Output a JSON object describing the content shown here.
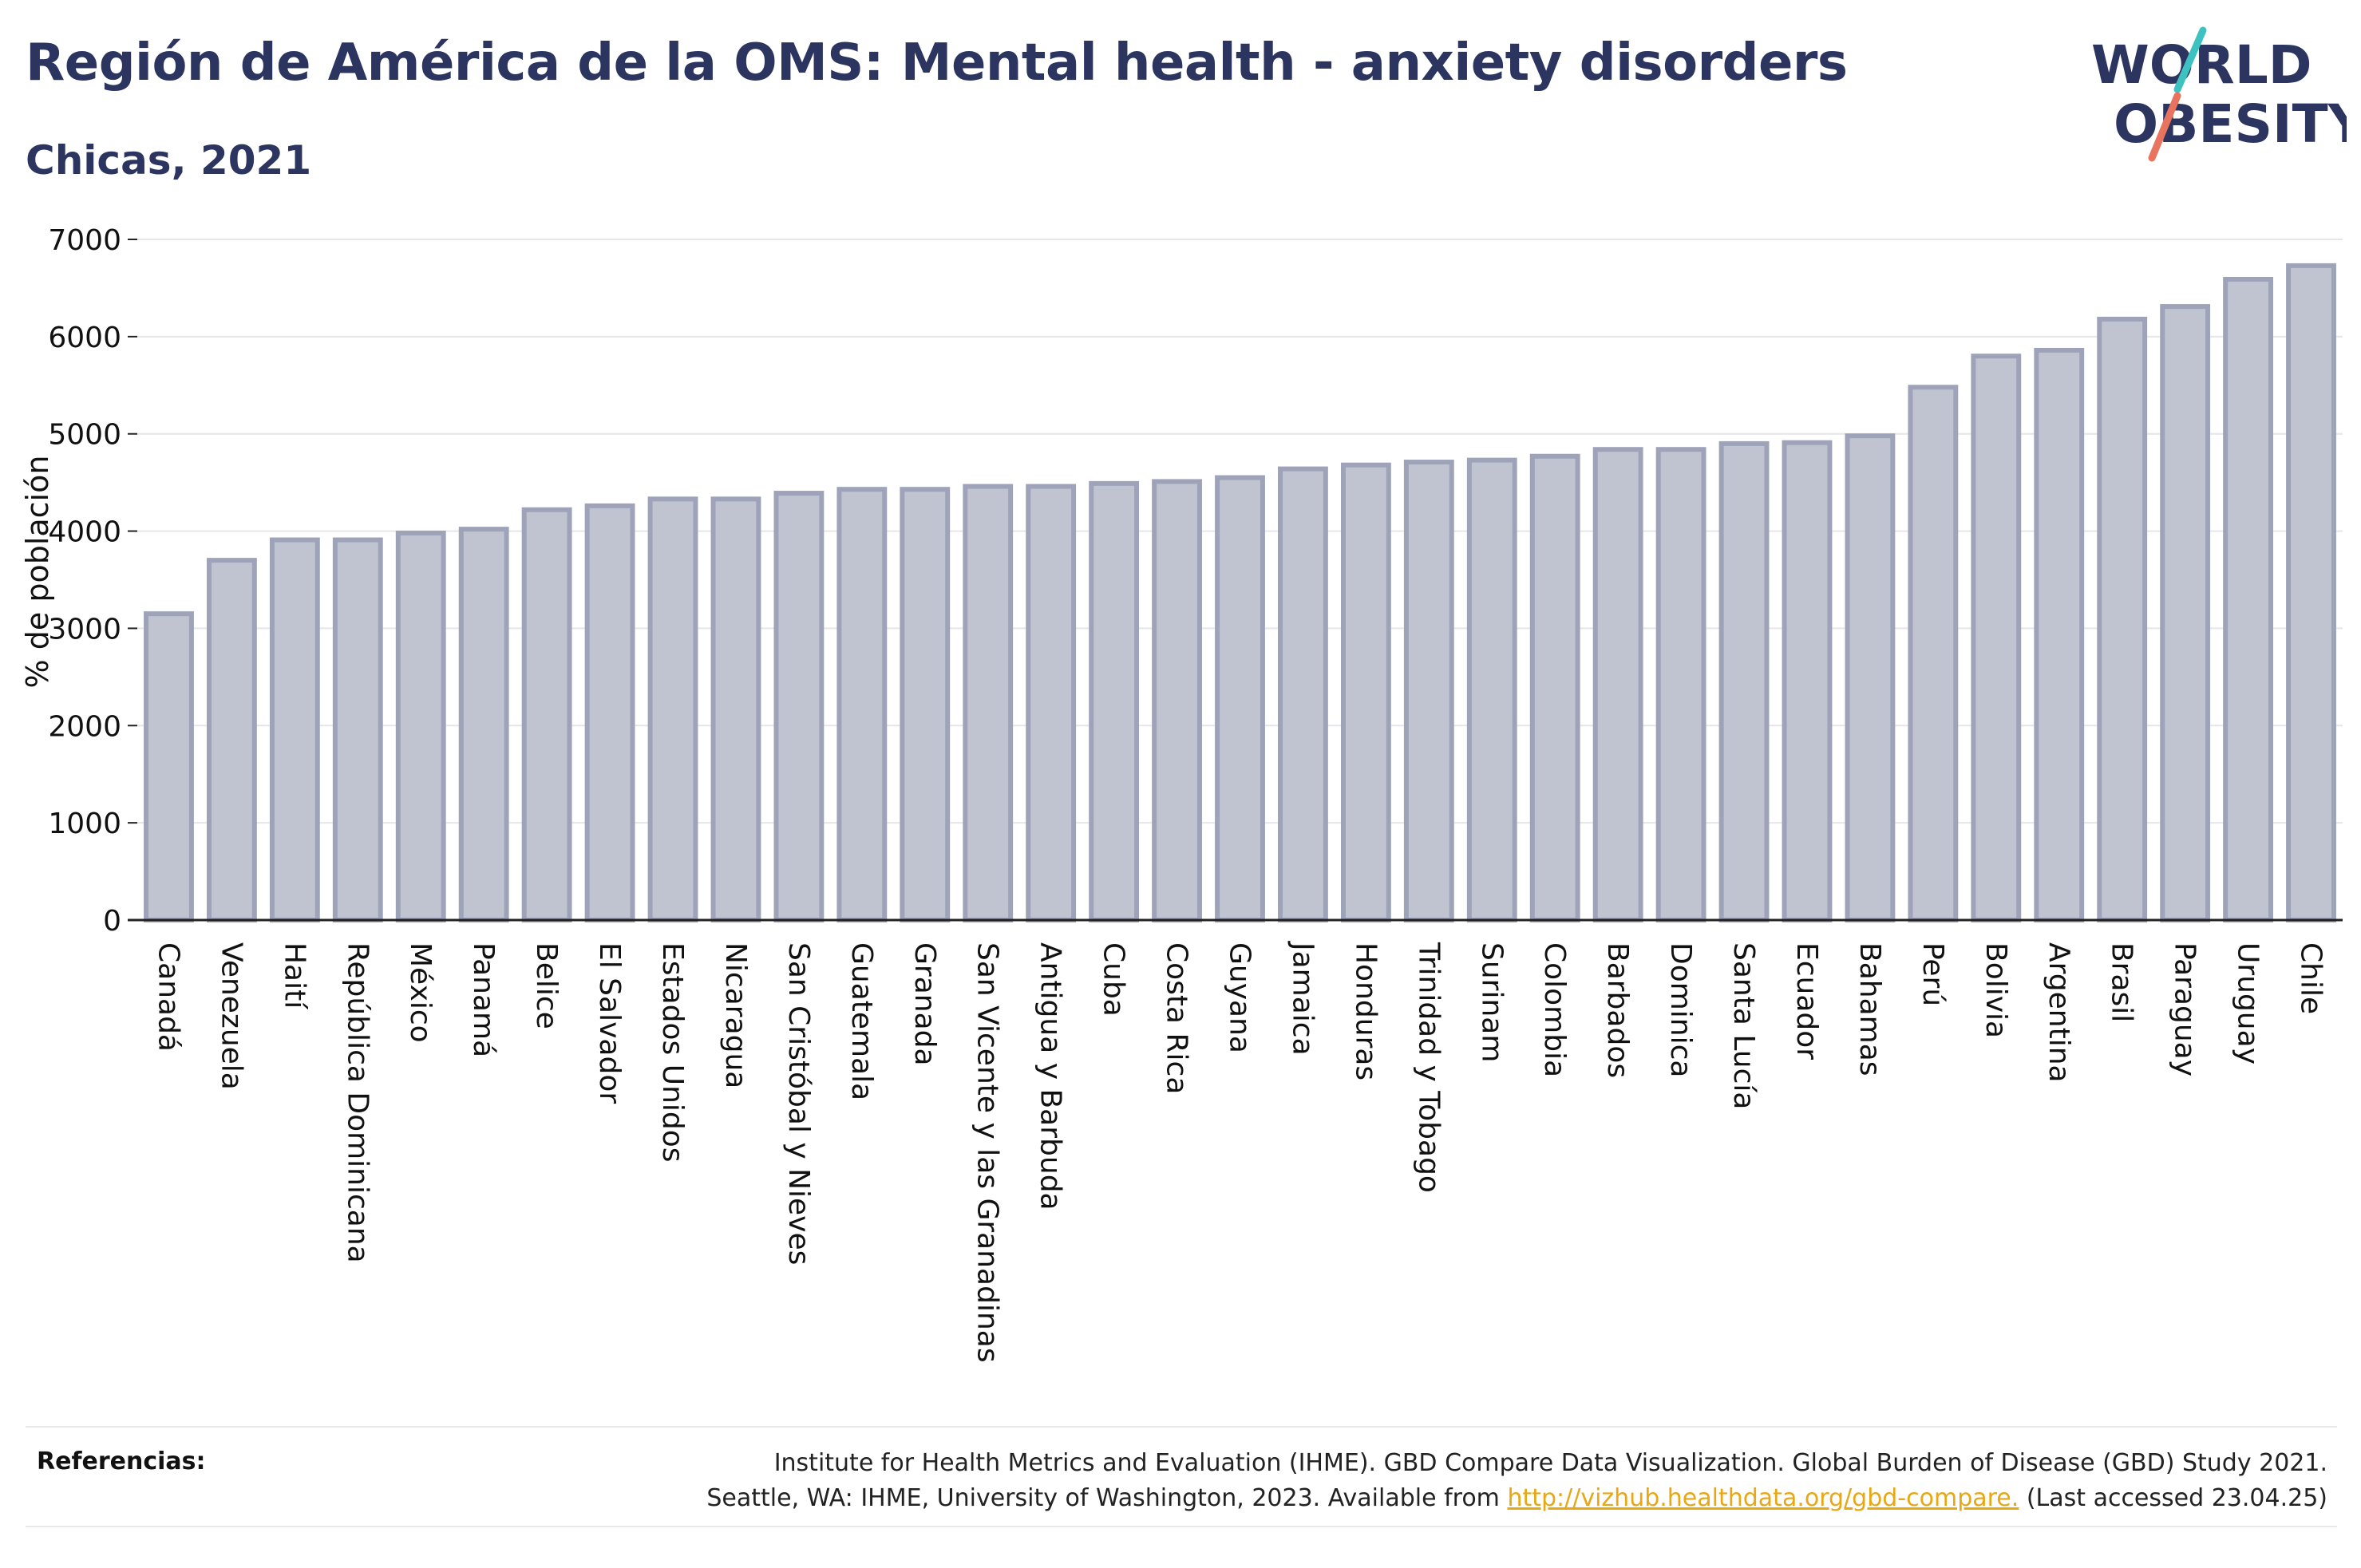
{
  "header": {
    "title": "Región de América de la OMS: Mental health - anxiety disorders",
    "subtitle": "Chicas, 2021",
    "logo": {
      "line1": "WORLD",
      "line2": "OBESITY"
    }
  },
  "colors": {
    "title": "#2b3560",
    "bar_fill": "#c0c3d0",
    "bar_stroke": "#9ea3ba",
    "grid": "#e6e6ea",
    "logo_text": "#2b3560",
    "logo_slash_teal": "#3ec1c1",
    "logo_slash_coral": "#e8735f",
    "link": "#e8a714"
  },
  "chart_data": {
    "type": "bar",
    "ylabel": "% de población",
    "xlabel": "",
    "ylim": [
      0,
      7000
    ],
    "yticks": [
      0,
      1000,
      2000,
      3000,
      4000,
      5000,
      6000,
      7000
    ],
    "grid": true,
    "categories": [
      "Canadá",
      "Venezuela",
      "Haití",
      "República Dominicana",
      "México",
      "Panamá",
      "Belice",
      "El Salvador",
      "Estados Unidos",
      "Nicaragua",
      "San Cristóbal y Nieves",
      "Guatemala",
      "Granada",
      "San Vicente y las Granadinas",
      "Antigua y Barbuda",
      "Cuba",
      "Costa Rica",
      "Guyana",
      "Jamaica",
      "Honduras",
      "Trinidad y Tobago",
      "Surinam",
      "Colombia",
      "Barbados",
      "Dominica",
      "Santa Lucía",
      "Ecuador",
      "Bahamas",
      "Perú",
      "Bolivia",
      "Argentina",
      "Brasil",
      "Paraguay",
      "Uruguay",
      "Chile"
    ],
    "values": [
      3150,
      3700,
      3910,
      3910,
      3980,
      4020,
      4220,
      4260,
      4330,
      4330,
      4390,
      4430,
      4430,
      4460,
      4460,
      4490,
      4510,
      4550,
      4640,
      4680,
      4710,
      4730,
      4770,
      4840,
      4840,
      4900,
      4910,
      4980,
      5480,
      5800,
      5860,
      6180,
      6310,
      6590,
      6730
    ]
  },
  "references": {
    "label": "Referencias:",
    "line1": "Institute for Health Metrics and Evaluation (IHME). GBD Compare Data Visualization. Global Burden of Disease (GBD) Study 2021.",
    "line2_pre": "Seattle, WA: IHME, University of Washington, 2023. Available from ",
    "link": "http://vizhub.healthdata.org/gbd-compare.",
    "line2_post": " (Last accessed 23.04.25)"
  }
}
